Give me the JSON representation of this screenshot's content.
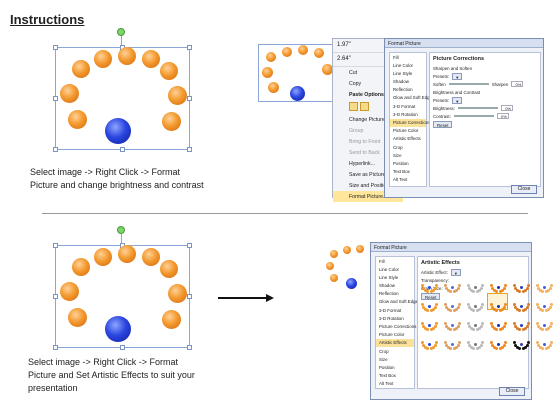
{
  "title": "Instructions",
  "step1": {
    "caption_line1": "Select image -> Right Click -> Format",
    "caption_line2": "Picture and change brightness and contrast"
  },
  "step2": {
    "caption_line1": "Select image -> Right Click -> Format",
    "caption_line2": "Picture and Set Artistic Effects to suit your",
    "caption_line3": "presentation"
  },
  "context_menu": {
    "height_value": "1.97\"",
    "width_value": "2.64\"",
    "items": [
      "Cut",
      "Copy",
      "Paste Options:",
      "Change Picture...",
      "Group",
      "Bring to Front",
      "Send to Back",
      "Hyperlink...",
      "Save as Picture...",
      "Size and Position...",
      "Format Picture..."
    ]
  },
  "dialog1": {
    "title": "Format Picture",
    "categories": [
      "Fill",
      "Line Color",
      "Line Style",
      "Shadow",
      "Reflection",
      "Glow and Soft Edges",
      "3-D Format",
      "3-D Rotation",
      "Picture Corrections",
      "Picture Color",
      "Artistic Effects",
      "Crop",
      "Size",
      "Position",
      "Text Box",
      "Alt Text"
    ],
    "panel_title": "Picture Corrections",
    "sharpen_section": "Sharpen and Soften",
    "presets_label": "Presets:",
    "soften_label": "Soften",
    "sharpen_label": "Sharpen",
    "sharpen_value": "0%",
    "brightness_section": "Brightness and Contrast",
    "presets2_label": "Presets:",
    "brightness_label": "Brightness:",
    "brightness_value": "0%",
    "contrast_label": "Contrast:",
    "contrast_value": "0%",
    "reset_label": "Reset",
    "close_label": "Close"
  },
  "dialog2": {
    "title": "Format Picture",
    "categories": [
      "Fill",
      "Line Color",
      "Line Style",
      "Shadow",
      "Reflection",
      "Glow and Soft Edges",
      "3-D Format",
      "3-D Rotation",
      "Picture Corrections",
      "Picture Color",
      "Artistic Effects",
      "Crop",
      "Size",
      "Position",
      "Text Box",
      "Alt Text"
    ],
    "panel_title": "Artistic Effects",
    "effect_label": "Artistic Effect:",
    "transparency_label": "Transparency:",
    "grain_label": "Grain Size:",
    "reset_label": "Reset",
    "close_label": "Close"
  },
  "colors": {
    "orange": "#f39a2e",
    "blue": "#2b46e0",
    "selection_frame": "#8aa6d6",
    "highlight": "#fbe29b"
  },
  "icons": [
    "rotate-handle-icon",
    "cut-icon",
    "copy-icon",
    "paste-icon",
    "change-picture-icon",
    "hyperlink-icon",
    "format-picture-icon",
    "arrow-right-icon"
  ]
}
